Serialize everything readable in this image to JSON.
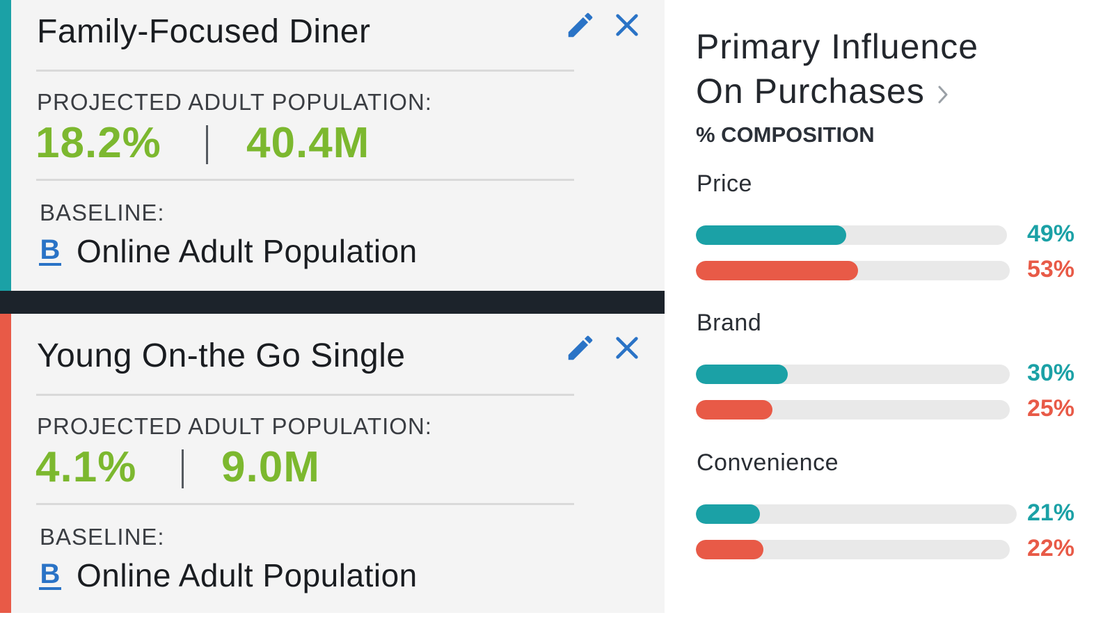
{
  "colors": {
    "teal": "#1ba1a6",
    "coral": "#e85a47",
    "value_green": "#7cb82f",
    "icon_blue": "#2a73c6"
  },
  "segments": [
    {
      "title": "Family-Focused Diner",
      "accent": "#1ba1a6",
      "projected_label": "PROJECTED ADULT POPULATION:",
      "percent": "18.2%",
      "count": "40.4M",
      "baseline_label": "BASELINE:",
      "baseline_icon": "B",
      "baseline_name": "Online Adult Population"
    },
    {
      "title": "Young On-the Go Single",
      "accent": "#e85a47",
      "projected_label": "PROJECTED ADULT POPULATION:",
      "percent": "4.1%",
      "count": "9.0M",
      "baseline_label": "BASELINE:",
      "baseline_icon": "B",
      "baseline_name": "Online Adult Population"
    }
  ],
  "panel": {
    "title_line1": "Primary Influence",
    "title_line2": "On Purchases",
    "subtitle": "% COMPOSITION"
  },
  "chart_data": {
    "type": "bar",
    "orientation": "horizontal",
    "categories": [
      "Price",
      "Brand",
      "Convenience"
    ],
    "series": [
      {
        "name": "Family-Focused Diner",
        "color": "#1ba1a6",
        "values": [
          49,
          30,
          21
        ],
        "labels": [
          "49%",
          "30%",
          "21%"
        ]
      },
      {
        "name": "Young On-the Go Single",
        "color": "#e85a47",
        "values": [
          53,
          25,
          22
        ],
        "labels": [
          "53%",
          "25%",
          "22%"
        ]
      }
    ],
    "xlim": [
      0,
      100
    ],
    "grid": false
  }
}
